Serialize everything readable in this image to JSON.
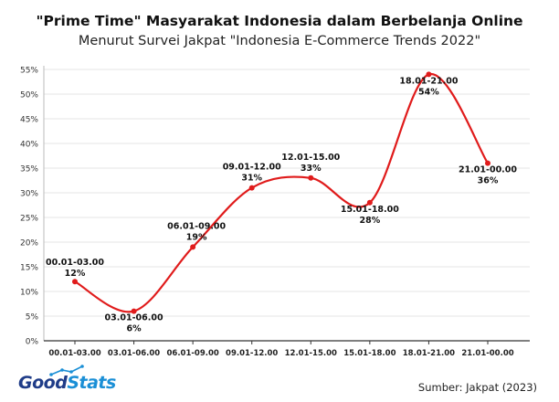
{
  "header": {
    "title": "\"Prime Time\" Masyarakat Indonesia dalam Berbelanja Online",
    "subtitle": "Menurut Survei Jakpat \"Indonesia E-Commerce Trends 2022\""
  },
  "footer": {
    "logo_good": "Good",
    "logo_stats": "Stats",
    "source": "Sumber: Jakpat (2023)"
  },
  "colors": {
    "line": "#e01b1b",
    "grid": "#e6e6e6",
    "axis": "#333333"
  },
  "chart_data": {
    "type": "line",
    "title": "\"Prime Time\" Masyarakat Indonesia dalam Berbelanja Online",
    "subtitle": "Menurut Survei Jakpat \"Indonesia E-Commerce Trends 2022\"",
    "xlabel": "",
    "ylabel": "",
    "categories": [
      "00.01-03.00",
      "03.01-06.00",
      "06.01-09.00",
      "09.01-12.00",
      "12.01-15.00",
      "15.01-18.00",
      "18.01-21.00",
      "21.01-00.00"
    ],
    "values": [
      12,
      6,
      19,
      31,
      33,
      28,
      54,
      36
    ],
    "value_labels": [
      "12%",
      "6%",
      "19%",
      "31%",
      "33%",
      "28%",
      "54%",
      "36%"
    ],
    "point_labels": [
      "00.01-03.00",
      "03.01-06.00",
      "06.01-09.00",
      "09.01-12.00",
      "12.01-15.00",
      "15.01-18.00",
      "18.01-21.00",
      "21.01-00.00"
    ],
    "ylim": [
      0,
      55
    ],
    "yticks": [
      0,
      5,
      10,
      15,
      20,
      25,
      30,
      35,
      40,
      45,
      50,
      55
    ],
    "ytick_labels": [
      "0%",
      "5%",
      "10%",
      "15%",
      "20%",
      "25%",
      "30%",
      "35%",
      "40%",
      "45%",
      "50%",
      "55%"
    ],
    "grid": true,
    "smooth": true,
    "legend": "none"
  }
}
